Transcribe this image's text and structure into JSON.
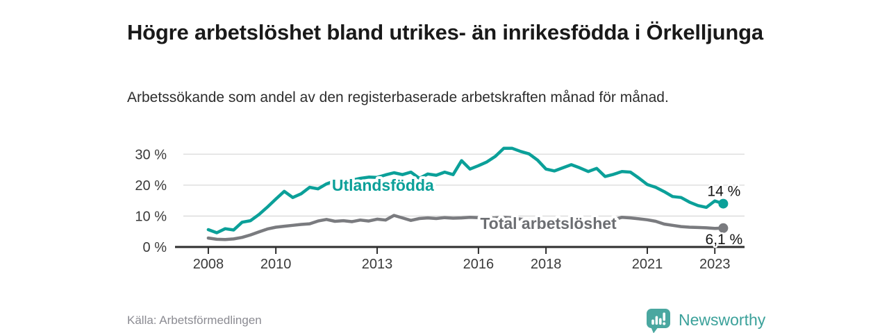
{
  "header": {
    "title": "Högre arbetslöshet bland utrikes- än inrikesfödda i Örkelljunga",
    "subtitle": "Arbetssökande som andel av den registerbaserade arbetskraften månad för månad."
  },
  "chart_data": {
    "type": "line",
    "x_unit": "year",
    "x_start": 2008,
    "x_step": 0.25,
    "x_ticks": [
      2008,
      2010,
      2013,
      2016,
      2018,
      2021,
      2023
    ],
    "y_ticks": [
      0,
      10,
      20,
      30
    ],
    "y_tick_suffix": " %",
    "xlim": [
      2006.87,
      2023.88
    ],
    "ylim": [
      0,
      35
    ],
    "grid": "horizontal",
    "legend_position": "inline-on-line",
    "series": [
      {
        "name": "Utlandsfödda",
        "color": "#0ba099",
        "line_label": {
          "text": "Utlandsfödda",
          "x": 2011.66,
          "y": 20.0
        },
        "end_label": {
          "text": "14 %",
          "position": "above"
        },
        "values": [
          5.6,
          4.6,
          5.9,
          5.5,
          8.0,
          8.5,
          10.5,
          12.9,
          15.5,
          18.0,
          16.0,
          17.2,
          19.3,
          18.8,
          20.4,
          21.4,
          21.9,
          21.6,
          22.2,
          22.6,
          22.5,
          23.3,
          24.0,
          23.4,
          24.2,
          22.2,
          23.6,
          23.2,
          24.2,
          23.4,
          27.9,
          25.2,
          26.3,
          27.5,
          29.3,
          31.9,
          31.9,
          30.9,
          30.1,
          28.1,
          25.2,
          24.6,
          25.6,
          26.6,
          25.6,
          24.4,
          25.4,
          22.8,
          23.5,
          24.4,
          24.2,
          22.3,
          20.2,
          19.3,
          17.9,
          16.3,
          16.0,
          14.5,
          13.4,
          12.8,
          14.9,
          14.0
        ]
      },
      {
        "name": "Total arbetslöshet",
        "color": "#7a7b7f",
        "label_color": "#6c6e72",
        "line_label": {
          "text": "Total arbetslöshet",
          "x": 2016.05,
          "y": 7.6
        },
        "end_label": {
          "text": "6,1 %",
          "position": "below"
        },
        "values": [
          2.9,
          2.5,
          2.4,
          2.6,
          3.1,
          3.9,
          4.9,
          5.8,
          6.4,
          6.7,
          7.0,
          7.3,
          7.5,
          8.4,
          8.9,
          8.3,
          8.5,
          8.2,
          8.7,
          8.4,
          9.0,
          8.7,
          10.2,
          9.4,
          8.6,
          9.2,
          9.4,
          9.2,
          9.5,
          9.3,
          9.4,
          9.6,
          9.5,
          9.3,
          9.4,
          9.6,
          9.4,
          9.0,
          8.8,
          8.6,
          8.5,
          8.4,
          8.6,
          8.5,
          8.4,
          8.3,
          8.5,
          8.3,
          8.8,
          9.6,
          9.4,
          9.1,
          8.8,
          8.3,
          7.4,
          7.0,
          6.6,
          6.4,
          6.3,
          6.2,
          6.0,
          6.1
        ]
      }
    ]
  },
  "footer": {
    "source": "Källa: Arbetsförmedlingen",
    "logo_text": "Newsworthy"
  },
  "colors": {
    "accent_teal": "#0ba099",
    "line_gray": "#7a7b7f",
    "brand_teal": "#4aa7a0",
    "grid": "#d9d9d9",
    "axis": "#2e2e2e"
  }
}
